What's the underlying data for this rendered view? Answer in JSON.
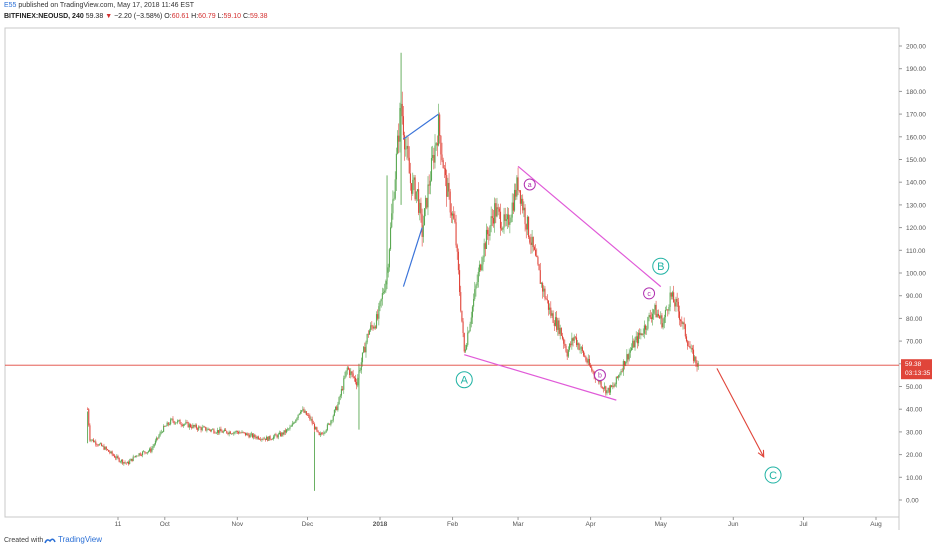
{
  "header": {
    "author": "E55",
    "published": " published on TradingView.com, May 17, 2018 11:46 EST",
    "symbol": "BITFINEX:NEOUSD, 240",
    "last": "59.38",
    "change": "−2.20 (−3.58%)",
    "o_label": "O:",
    "o_val": "60.61",
    "h_label": "H:",
    "h_val": "60.79",
    "l_label": "L:",
    "l_val": "59.10",
    "c_label": "C:",
    "c_val": "59.38"
  },
  "price_tag": {
    "price": "59.38",
    "countdown": "03:13:35"
  },
  "footer": {
    "created_with": "Created with",
    "brand": "TradingView"
  },
  "colors": {
    "up": "#5aa852",
    "down": "#e0453a",
    "wedge": "#e05ad8",
    "leg_blue": "#3b74d9",
    "projection": "#e0453a",
    "last_line": "#e0453a",
    "wave_teal": "#21b3a4",
    "wave_pink": "#b030b0"
  },
  "chart_data": {
    "type": "candlestick",
    "x_type": "date",
    "y_scale": "linear",
    "ylim": [
      -5,
      207
    ],
    "yticks": [
      "0.00",
      "10.00",
      "20.00",
      "30.00",
      "40.00",
      "50.00",
      "60.00",
      "70.00",
      "80.00",
      "90.00",
      "100.00",
      "110.00",
      "120.00",
      "130.00",
      "140.00",
      "150.00",
      "160.00",
      "170.00",
      "180.00",
      "190.00",
      "200.00"
    ],
    "xtick_labels": [
      "11",
      "Oct",
      "Nov",
      "Dec",
      "2018",
      "Feb",
      "Mar",
      "Apr",
      "May",
      "Jun",
      "Jul",
      "Aug"
    ],
    "xtick_dates": [
      "2017-09-11",
      "2017-10-01",
      "2017-11-01",
      "2017-12-01",
      "2018-01-01",
      "2018-02-01",
      "2018-03-01",
      "2018-04-01",
      "2018-05-01",
      "2018-06-01",
      "2018-07-01",
      "2018-08-01"
    ],
    "price_path": [
      [
        "2017-08-29",
        40
      ],
      [
        "2017-08-30",
        27
      ],
      [
        "2017-09-05",
        23
      ],
      [
        "2017-09-11",
        18
      ],
      [
        "2017-09-15",
        16
      ],
      [
        "2017-09-19",
        20
      ],
      [
        "2017-09-25",
        22
      ],
      [
        "2017-09-30",
        31
      ],
      [
        "2017-10-04",
        35
      ],
      [
        "2017-10-08",
        34
      ],
      [
        "2017-10-14",
        32
      ],
      [
        "2017-10-20",
        31
      ],
      [
        "2017-10-26",
        30
      ],
      [
        "2017-11-01",
        30
      ],
      [
        "2017-11-08",
        28
      ],
      [
        "2017-11-14",
        27
      ],
      [
        "2017-11-20",
        29
      ],
      [
        "2017-11-24",
        32
      ],
      [
        "2017-11-28",
        40
      ],
      [
        "2017-12-02",
        36
      ],
      [
        "2017-12-06",
        28
      ],
      [
        "2017-12-10",
        33
      ],
      [
        "2017-12-14",
        42
      ],
      [
        "2017-12-18",
        58
      ],
      [
        "2017-12-22",
        52
      ],
      [
        "2017-12-27",
        74
      ],
      [
        "2017-12-31",
        80
      ],
      [
        "2018-01-04",
        100
      ],
      [
        "2018-01-08",
        150
      ],
      [
        "2018-01-10",
        175
      ],
      [
        "2018-01-12",
        155
      ],
      [
        "2018-01-14",
        140
      ],
      [
        "2018-01-17",
        135
      ],
      [
        "2018-01-19",
        118
      ],
      [
        "2018-01-22",
        140
      ],
      [
        "2018-01-26",
        165
      ],
      [
        "2018-01-29",
        140
      ],
      [
        "2018-02-02",
        120
      ],
      [
        "2018-02-06",
        65
      ],
      [
        "2018-02-10",
        88
      ],
      [
        "2018-02-14",
        110
      ],
      [
        "2018-02-19",
        128
      ],
      [
        "2018-02-24",
        120
      ],
      [
        "2018-03-01",
        140
      ],
      [
        "2018-03-04",
        125
      ],
      [
        "2018-03-07",
        112
      ],
      [
        "2018-03-11",
        95
      ],
      [
        "2018-03-15",
        82
      ],
      [
        "2018-03-19",
        75
      ],
      [
        "2018-03-22",
        65
      ],
      [
        "2018-03-25",
        72
      ],
      [
        "2018-03-28",
        66
      ],
      [
        "2018-04-01",
        58
      ],
      [
        "2018-04-05",
        52
      ],
      [
        "2018-04-08",
        48
      ],
      [
        "2018-04-11",
        50
      ],
      [
        "2018-04-15",
        60
      ],
      [
        "2018-04-19",
        68
      ],
      [
        "2018-04-23",
        74
      ],
      [
        "2018-04-28",
        84
      ],
      [
        "2018-05-02",
        78
      ],
      [
        "2018-05-05",
        90
      ],
      [
        "2018-05-08",
        85
      ],
      [
        "2018-05-11",
        75
      ],
      [
        "2018-05-14",
        65
      ],
      [
        "2018-05-17",
        59
      ]
    ],
    "spikes": [
      {
        "date": "2017-12-04",
        "low": 4,
        "high": 30
      },
      {
        "date": "2018-01-10",
        "low": 130,
        "high": 197
      },
      {
        "date": "2018-01-04",
        "low": 95,
        "high": 143
      },
      {
        "date": "2017-12-23",
        "low": 31,
        "high": 60
      },
      {
        "date": "2017-08-29",
        "low": 25,
        "high": 39
      }
    ],
    "last_price": 59.38,
    "drawings": {
      "upper_wedge": [
        [
          "2018-03-01",
          147
        ],
        [
          "2018-05-01",
          94
        ]
      ],
      "lower_wedge": [
        [
          "2018-02-06",
          64
        ],
        [
          "2018-04-12",
          44
        ]
      ],
      "left_leg": [
        [
          "2018-01-11",
          159
        ],
        [
          "2018-01-26",
          170
        ]
      ],
      "left_leg_low": [
        [
          "2018-01-11",
          94
        ],
        [
          "2018-01-19",
          120
        ]
      ],
      "projection": [
        [
          "2018-05-25",
          58
        ],
        [
          "2018-06-14",
          19
        ]
      ]
    },
    "wave_labels": [
      {
        "text": "A",
        "date": "2018-02-06",
        "price": 53,
        "style": "teal"
      },
      {
        "text": "B",
        "date": "2018-05-01",
        "price": 103,
        "style": "teal"
      },
      {
        "text": "C",
        "date": "2018-06-18",
        "price": 11,
        "style": "teal"
      },
      {
        "text": "a",
        "date": "2018-03-06",
        "price": 139,
        "style": "pink"
      },
      {
        "text": "b",
        "date": "2018-04-05",
        "price": 55,
        "style": "pink"
      },
      {
        "text": "c",
        "date": "2018-04-26",
        "price": 91,
        "style": "pink"
      }
    ]
  }
}
